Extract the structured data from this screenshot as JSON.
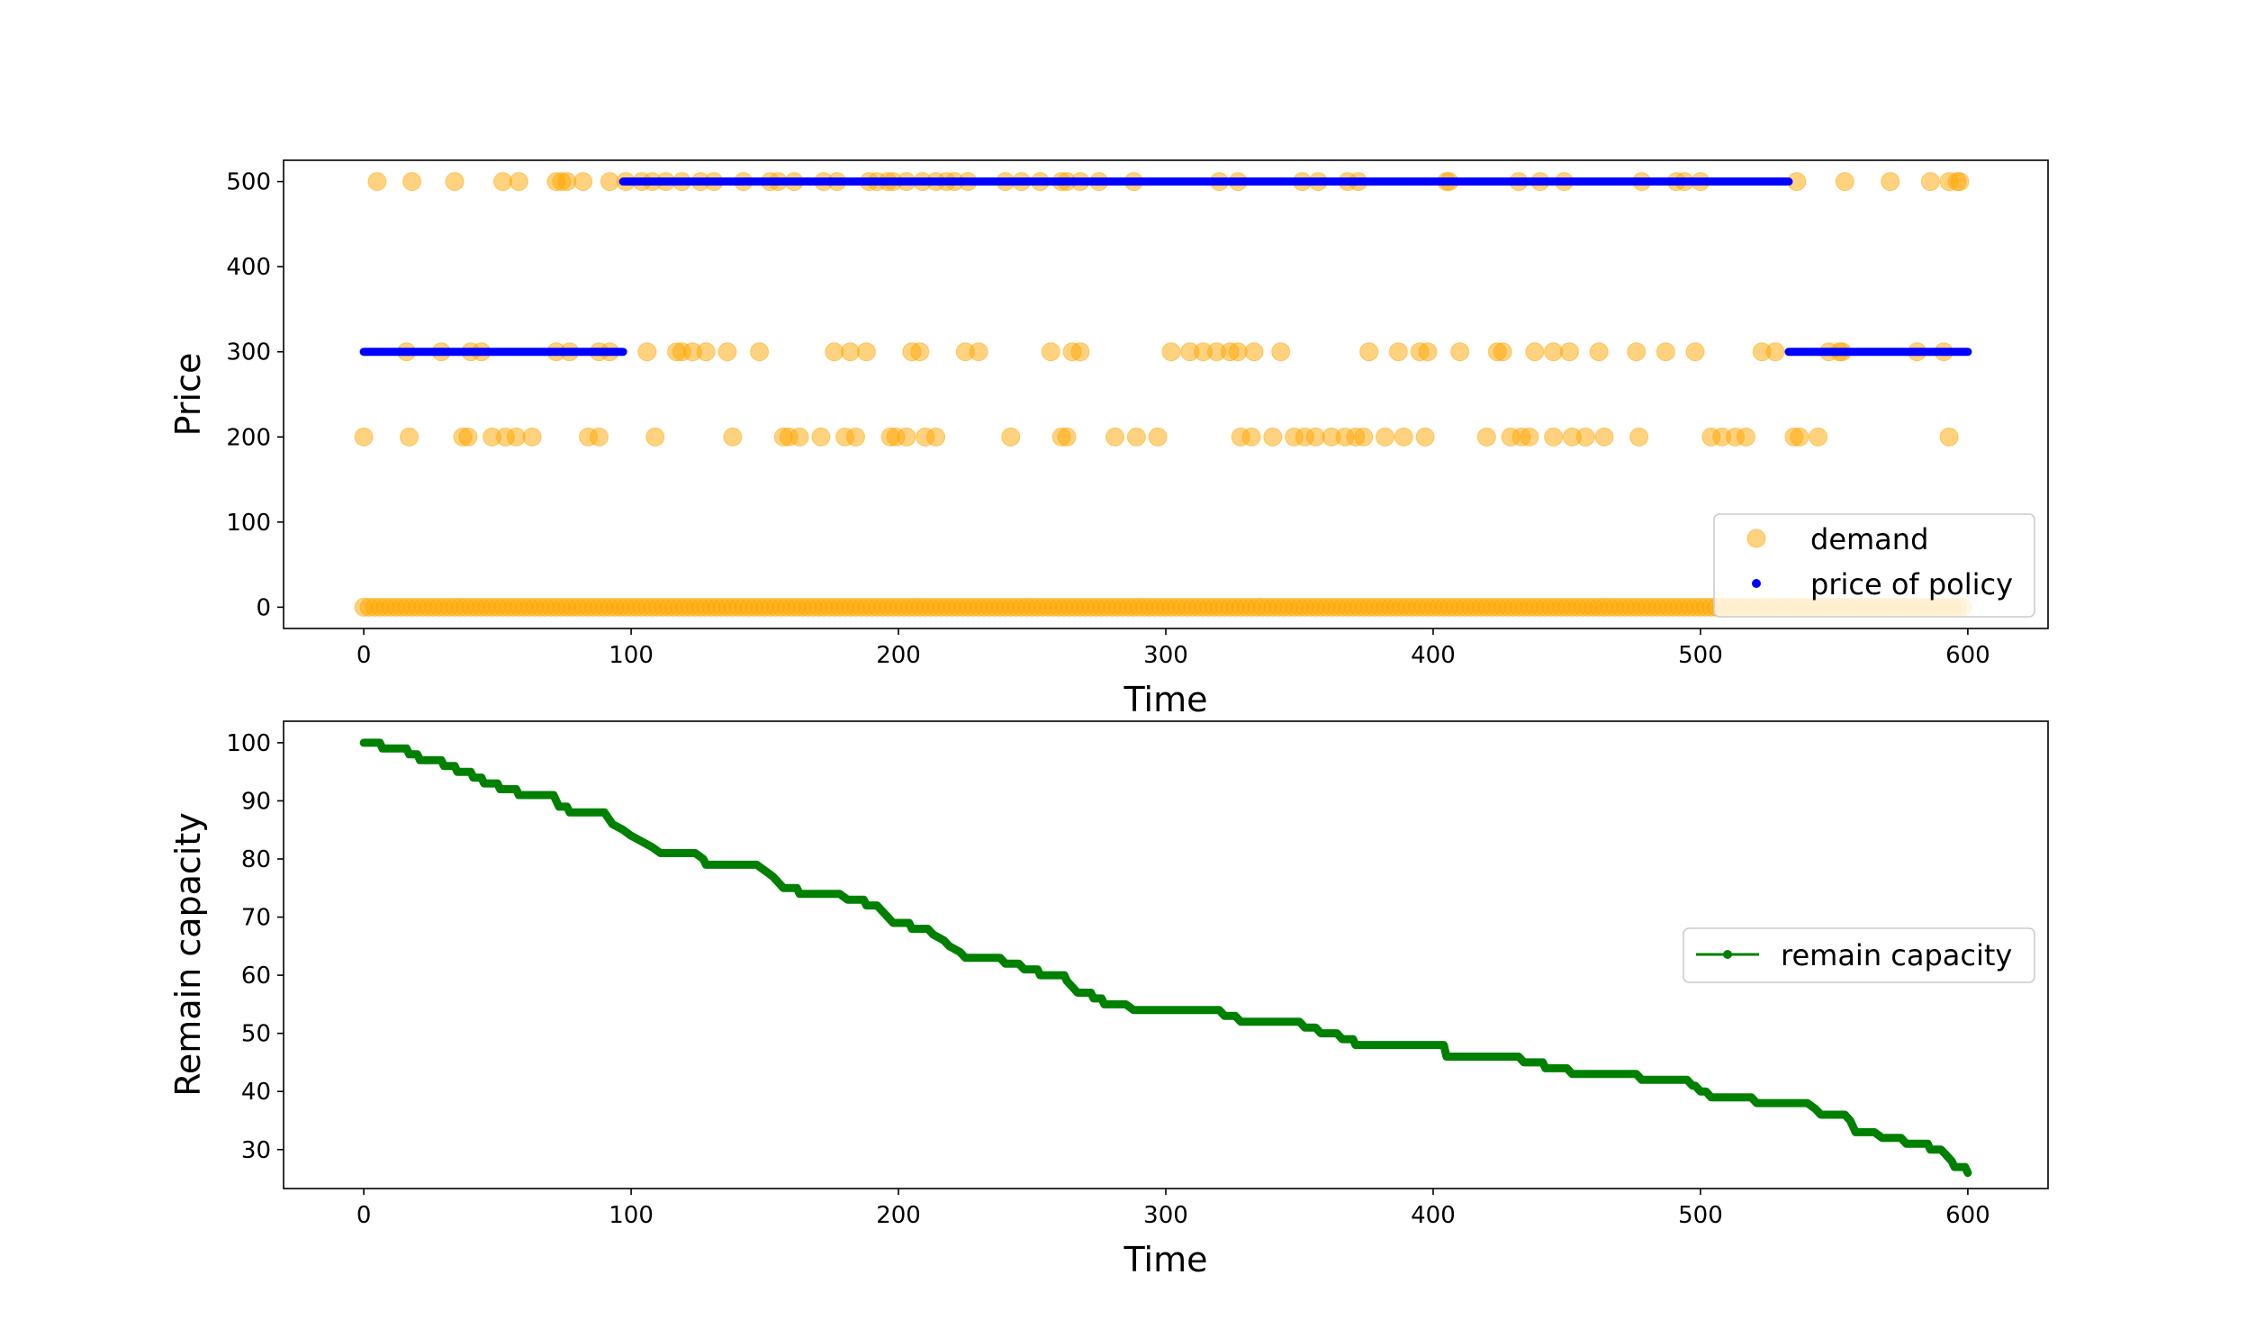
{
  "chart_data": [
    {
      "type": "scatter",
      "xlabel": "Time",
      "ylabel": "Price",
      "xlim": [
        -30,
        630
      ],
      "ylim": [
        -25,
        525
      ],
      "xticks": [
        0,
        100,
        200,
        300,
        400,
        500,
        600
      ],
      "yticks": [
        0,
        100,
        200,
        300,
        400,
        500
      ],
      "legend_position": "lower-right",
      "grid": false,
      "series": [
        {
          "name": "demand",
          "kind": "scatter",
          "color": "#ffa500",
          "levels": {
            "500": [
              5,
              18,
              34,
              52,
              58,
              72,
              74,
              76,
              82,
              92,
              98,
              104,
              108,
              113,
              119,
              126,
              131,
              142,
              152,
              155,
              161,
              172,
              177,
              189,
              192,
              196,
              198,
              203,
              209,
              214,
              218,
              221,
              226,
              240,
              246,
              253,
              261,
              263,
              268,
              275,
              288,
              320,
              327,
              351,
              357,
              368,
              372,
              405,
              406,
              432,
              440,
              449,
              478,
              491,
              494,
              500,
              536,
              554,
              571,
              586,
              593,
              596,
              597
            ],
            "300": [
              16,
              29,
              40,
              44,
              72,
              77,
              88,
              92,
              106,
              117,
              119,
              123,
              128,
              136,
              148,
              176,
              182,
              188,
              205,
              208,
              225,
              230,
              257,
              265,
              268,
              302,
              309,
              314,
              319,
              324,
              327,
              333,
              343,
              376,
              387,
              395,
              398,
              410,
              424,
              426,
              438,
              445,
              451,
              462,
              476,
              487,
              498,
              523,
              528,
              548,
              552,
              553,
              581,
              591
            ],
            "200": [
              0,
              17,
              37,
              39,
              48,
              53,
              57,
              63,
              84,
              88,
              109,
              138,
              157,
              159,
              163,
              171,
              180,
              184,
              197,
              199,
              203,
              210,
              214,
              242,
              261,
              263,
              281,
              289,
              297,
              328,
              332,
              340,
              348,
              352,
              356,
              362,
              367,
              371,
              374,
              382,
              389,
              397,
              420,
              429,
              433,
              436,
              445,
              452,
              457,
              464,
              477,
              504,
              508,
              513,
              517,
              535,
              537,
              544,
              593
            ],
            "0": [
              0,
              2,
              4,
              6,
              8,
              10,
              12,
              14,
              16,
              18,
              20,
              22,
              24,
              26,
              28,
              30,
              32,
              34,
              36,
              38,
              40,
              42,
              44,
              46,
              48,
              50,
              52,
              54,
              56,
              58,
              60,
              62,
              64,
              66,
              68,
              70,
              72,
              74,
              76,
              78,
              80,
              82,
              84,
              86,
              88,
              90,
              92,
              94,
              96,
              98,
              100,
              102,
              104,
              106,
              108,
              110,
              112,
              114,
              116,
              118,
              120,
              122,
              124,
              126,
              128,
              130,
              132,
              134,
              136,
              138,
              140,
              142,
              144,
              146,
              148,
              150,
              152,
              154,
              156,
              158,
              160,
              162,
              164,
              166,
              168,
              170,
              172,
              174,
              176,
              178,
              180,
              182,
              184,
              186,
              188,
              190,
              192,
              194,
              196,
              198,
              200,
              202,
              204,
              206,
              208,
              210,
              212,
              214,
              216,
              218,
              220,
              222,
              224,
              226,
              228,
              230,
              232,
              234,
              236,
              238,
              240,
              242,
              244,
              246,
              248,
              250,
              252,
              254,
              256,
              258,
              260,
              262,
              264,
              266,
              268,
              270,
              272,
              274,
              276,
              278,
              280,
              282,
              284,
              286,
              288,
              290,
              292,
              294,
              296,
              298,
              300,
              302,
              304,
              306,
              308,
              310,
              312,
              314,
              316,
              318,
              320,
              322,
              324,
              326,
              328,
              330,
              332,
              334,
              336,
              338,
              340,
              342,
              344,
              346,
              348,
              350,
              352,
              354,
              356,
              358,
              360,
              362,
              364,
              366,
              368,
              370,
              372,
              374,
              376,
              378,
              380,
              382,
              384,
              386,
              388,
              390,
              392,
              394,
              396,
              398,
              400,
              402,
              404,
              406,
              408,
              410,
              412,
              414,
              416,
              418,
              420,
              422,
              424,
              426,
              428,
              430,
              432,
              434,
              436,
              438,
              440,
              442,
              444,
              446,
              448,
              450,
              452,
              454,
              456,
              458,
              460,
              462,
              464,
              466,
              468,
              470,
              472,
              474,
              476,
              478,
              480,
              482,
              484,
              486,
              488,
              490,
              492,
              494,
              496,
              498,
              500,
              502,
              504,
              506,
              508,
              510,
              512,
              514,
              516,
              518,
              520,
              522,
              524,
              526,
              528,
              530,
              532,
              534,
              536,
              538,
              540,
              542,
              544,
              546,
              548,
              550,
              552,
              554,
              556,
              558,
              560,
              562,
              564,
              566,
              568,
              570,
              572,
              574,
              576,
              578,
              580,
              582,
              584,
              586,
              588,
              590,
              592,
              594,
              596,
              598
            ]
          }
        },
        {
          "name": "price of policy",
          "kind": "segments",
          "color": "#0000ff",
          "segments": [
            {
              "x_start": 0,
              "x_end": 97,
              "y": 300
            },
            {
              "x_start": 97,
              "x_end": 533,
              "y": 500
            },
            {
              "x_start": 533,
              "x_end": 600,
              "y": 300
            }
          ]
        }
      ]
    },
    {
      "type": "line",
      "xlabel": "Time",
      "ylabel": "Remain capacity",
      "xlim": [
        -30,
        630
      ],
      "ylim": [
        23.3,
        103.7
      ],
      "xticks": [
        0,
        100,
        200,
        300,
        400,
        500,
        600
      ],
      "yticks": [
        30,
        40,
        50,
        60,
        70,
        80,
        90,
        100
      ],
      "legend_position": "center-right",
      "grid": false,
      "series": [
        {
          "name": "remain capacity",
          "color": "#008000",
          "steps": [
            [
              0,
              100
            ],
            [
              6,
              100
            ],
            [
              7,
              99
            ],
            [
              16,
              99
            ],
            [
              17,
              98
            ],
            [
              20,
              98
            ],
            [
              21,
              97
            ],
            [
              29,
              97
            ],
            [
              30,
              96
            ],
            [
              34,
              96
            ],
            [
              35,
              95
            ],
            [
              40,
              95
            ],
            [
              41,
              94
            ],
            [
              44,
              94
            ],
            [
              45,
              93
            ],
            [
              50,
              93
            ],
            [
              51,
              92
            ],
            [
              57,
              92
            ],
            [
              58,
              91
            ],
            [
              71,
              91
            ],
            [
              73,
              89
            ],
            [
              76,
              89
            ],
            [
              77,
              88
            ],
            [
              90,
              88
            ],
            [
              93,
              86
            ],
            [
              97,
              85
            ],
            [
              100,
              84
            ],
            [
              104,
              83
            ],
            [
              108,
              82
            ],
            [
              111,
              81
            ],
            [
              124,
              81
            ],
            [
              127,
              80
            ],
            [
              128,
              79
            ],
            [
              147,
              79
            ],
            [
              150,
              78
            ],
            [
              153,
              77
            ],
            [
              155,
              76
            ],
            [
              157,
              75
            ],
            [
              162,
              75
            ],
            [
              163,
              74
            ],
            [
              178,
              74
            ],
            [
              181,
              73
            ],
            [
              187,
              73
            ],
            [
              188,
              72
            ],
            [
              192,
              72
            ],
            [
              194,
              71
            ],
            [
              196,
              70
            ],
            [
              198,
              69
            ],
            [
              204,
              69
            ],
            [
              205,
              68
            ],
            [
              211,
              68
            ],
            [
              213,
              67
            ],
            [
              217,
              66
            ],
            [
              219,
              65
            ],
            [
              223,
              64
            ],
            [
              225,
              63
            ],
            [
              238,
              63
            ],
            [
              240,
              62
            ],
            [
              245,
              62
            ],
            [
              247,
              61
            ],
            [
              252,
              61
            ],
            [
              253,
              60
            ],
            [
              262,
              60
            ],
            [
              263,
              59
            ],
            [
              265,
              58
            ],
            [
              267,
              57
            ],
            [
              272,
              57
            ],
            [
              273,
              56
            ],
            [
              276,
              56
            ],
            [
              277,
              55
            ],
            [
              285,
              55
            ],
            [
              288,
              54
            ],
            [
              320,
              54
            ],
            [
              322,
              53
            ],
            [
              326,
              53
            ],
            [
              328,
              52
            ],
            [
              350,
              52
            ],
            [
              352,
              51
            ],
            [
              356,
              51
            ],
            [
              358,
              50
            ],
            [
              364,
              50
            ],
            [
              366,
              49
            ],
            [
              370,
              49
            ],
            [
              371,
              48
            ],
            [
              404,
              48
            ],
            [
              405,
              46
            ],
            [
              432,
              46
            ],
            [
              434,
              45
            ],
            [
              441,
              45
            ],
            [
              442,
              44
            ],
            [
              450,
              44
            ],
            [
              452,
              43
            ],
            [
              476,
              43
            ],
            [
              478,
              42
            ],
            [
              495,
              42
            ],
            [
              497,
              41
            ],
            [
              498,
              41
            ],
            [
              500,
              40
            ],
            [
              502,
              40
            ],
            [
              504,
              39
            ],
            [
              519,
              39
            ],
            [
              521,
              38
            ],
            [
              540,
              38
            ],
            [
              543,
              37
            ],
            [
              545,
              36
            ],
            [
              554,
              36
            ],
            [
              556,
              35
            ],
            [
              557,
              34
            ],
            [
              558,
              33
            ],
            [
              565,
              33
            ],
            [
              568,
              32
            ],
            [
              575,
              32
            ],
            [
              577,
              31
            ],
            [
              585,
              31
            ],
            [
              586,
              30
            ],
            [
              590,
              30
            ],
            [
              592,
              29
            ],
            [
              594,
              28
            ],
            [
              595,
              27
            ],
            [
              599,
              27
            ],
            [
              600,
              26
            ]
          ]
        }
      ]
    }
  ]
}
